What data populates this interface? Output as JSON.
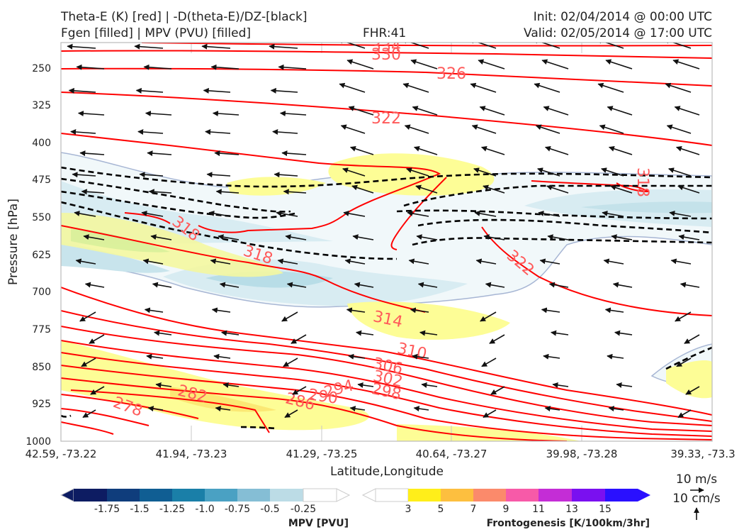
{
  "header": {
    "title_left_1": "Theta-E (K) [red] | -D(theta-E)/DZ-[black]",
    "title_left_2": "Fgen [filled] | MPV (PVU) [filled]",
    "fhr": "FHR:41",
    "init": "Init: 02/04/2014 @ 00:00 UTC",
    "valid": "Valid: 02/05/2014 @ 17:00 UTC"
  },
  "chart_data": {
    "type": "cross-section",
    "xlabel": "Latitude,Longitude",
    "ylabel": "Pressure [hPa]",
    "x_ticks": [
      "42.59, -73.22",
      "41.94, -73.23",
      "41.29, -73.25",
      "40.64, -73.27",
      "39.98, -73.28",
      "39.33, -73.3"
    ],
    "y_ticks": [
      "250",
      "325",
      "400",
      "475",
      "550",
      "625",
      "700",
      "775",
      "850",
      "925",
      "1000"
    ],
    "ylim": [
      1000,
      200
    ],
    "theta_e_labels": [
      "334",
      "330",
      "326",
      "322",
      "318",
      "318",
      "318",
      "322",
      "314",
      "310",
      "306",
      "302",
      "298",
      "294",
      "290",
      "286",
      "282",
      "278"
    ],
    "theta_e_color": "#ff0000",
    "contour_label_color": "#ff5a5a",
    "lapse_contour_color": "#000000",
    "wind_vectors": "westward-pointing arrows throughout"
  },
  "colorbars": {
    "mpv": {
      "label": "MPV [PVU]",
      "ticks": [
        "-1.75",
        "-1.5",
        "-1.25",
        "-1.0",
        "-0.75",
        "-0.5",
        "-0.25"
      ],
      "colors": [
        "#0d1c62",
        "#0f3d7c",
        "#105e93",
        "#1a7fa8",
        "#4aa1c3",
        "#85bed5",
        "#bcdce6",
        "#ffffff"
      ]
    },
    "fgen": {
      "label": "Frontogenesis [K/100km/3hr]",
      "ticks": [
        "3",
        "5",
        "7",
        "9",
        "11",
        "13",
        "15"
      ],
      "colors": [
        "#ffffff",
        "#ffee1a",
        "#fdbf3f",
        "#fb8a6b",
        "#f75aa8",
        "#c42dd6",
        "#7a10f0",
        "#2a10ff"
      ]
    }
  },
  "wind_legend": {
    "horizontal": "10 m/s",
    "vertical": "10 cm/s"
  }
}
